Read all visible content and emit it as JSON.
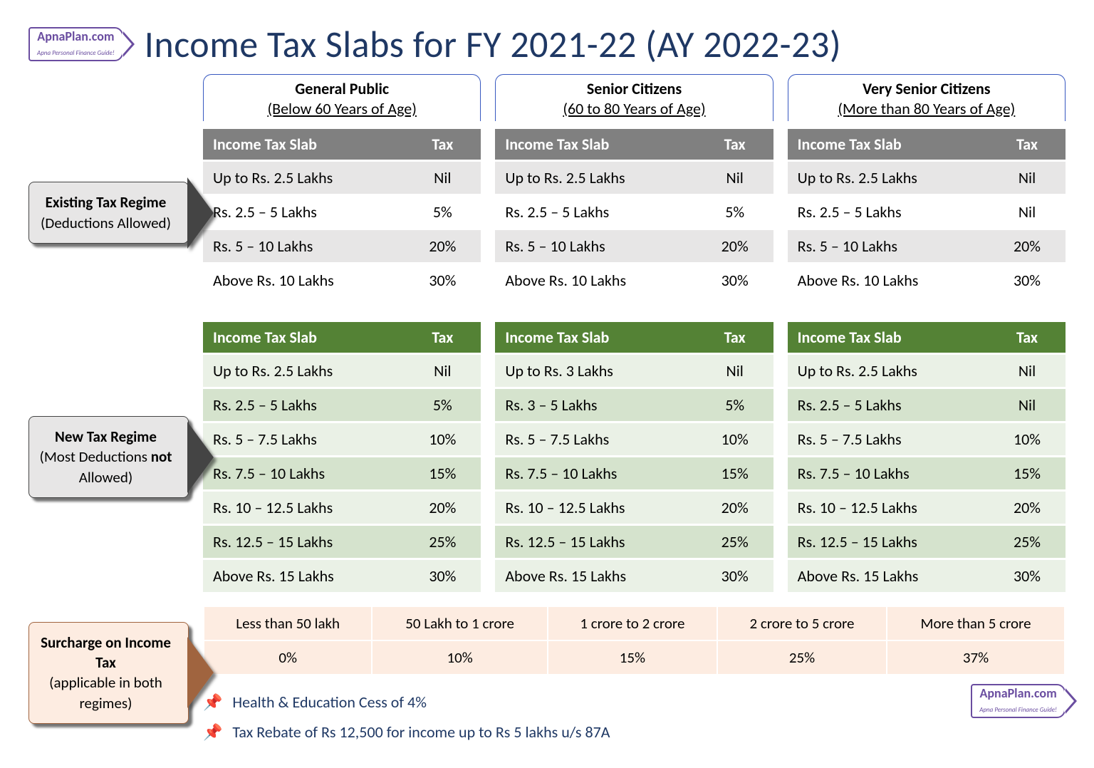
{
  "logo": {
    "brand": "ApnaPlan.com",
    "tag": "Apna Personal Finance Guide!"
  },
  "title": "Income Tax Slabs for FY 2021-22 (AY 2022-23)",
  "categories": [
    {
      "title": "General Public",
      "sub": "(Below 60 Years of Age)"
    },
    {
      "title": "Senior Citizens",
      "sub": "(60 to 80 Years of Age)"
    },
    {
      "title": "Very Senior Citizens",
      "sub": "(More than 80 Years of Age)"
    }
  ],
  "regimes": {
    "existing": {
      "strong": "Existing Tax Regime",
      "sub": "(Deductions Allowed)",
      "header_col1": "Income Tax Slab",
      "header_col2": "Tax"
    },
    "new": {
      "strong": "New Tax Regime",
      "sub_pre": "(Most Deductions ",
      "sub_mid": "not",
      "sub_post": " Allowed)",
      "header_col1": "Income Tax Slab",
      "header_col2": "Tax"
    },
    "surcharge": {
      "strong": "Surcharge on Income Tax",
      "sub": "(applicable in both regimes)"
    }
  },
  "existing_tables": [
    [
      [
        "Up to Rs. 2.5 Lakhs",
        "Nil"
      ],
      [
        "Rs. 2.5 – 5 Lakhs",
        "5%"
      ],
      [
        "Rs. 5 – 10 Lakhs",
        "20%"
      ],
      [
        "Above Rs. 10 Lakhs",
        "30%"
      ]
    ],
    [
      [
        "Up to Rs. 2.5 Lakhs",
        "Nil"
      ],
      [
        "Rs. 2.5 – 5 Lakhs",
        "5%"
      ],
      [
        "Rs. 5 – 10 Lakhs",
        "20%"
      ],
      [
        "Above Rs. 10 Lakhs",
        "30%"
      ]
    ],
    [
      [
        "Up to Rs. 2.5 Lakhs",
        "Nil"
      ],
      [
        "Rs. 2.5 – 5 Lakhs",
        "Nil"
      ],
      [
        "Rs. 5 – 10 Lakhs",
        "20%"
      ],
      [
        "Above Rs. 10 Lakhs",
        "30%"
      ]
    ]
  ],
  "new_tables": [
    [
      [
        "Up to Rs. 2.5 Lakhs",
        "Nil"
      ],
      [
        "Rs. 2.5 – 5 Lakhs",
        "5%"
      ],
      [
        "Rs. 5 – 7.5 Lakhs",
        "10%"
      ],
      [
        "Rs. 7.5 – 10 Lakhs",
        "15%"
      ],
      [
        "Rs. 10 – 12.5 Lakhs",
        "20%"
      ],
      [
        "Rs. 12.5 – 15 Lakhs",
        "25%"
      ],
      [
        "Above Rs. 15 Lakhs",
        "30%"
      ]
    ],
    [
      [
        "Up to Rs. 3 Lakhs",
        "Nil"
      ],
      [
        "Rs. 3 – 5 Lakhs",
        "5%"
      ],
      [
        "Rs. 5 – 7.5 Lakhs",
        "10%"
      ],
      [
        "Rs. 7.5 – 10 Lakhs",
        "15%"
      ],
      [
        "Rs. 10 – 12.5 Lakhs",
        "20%"
      ],
      [
        "Rs. 12.5 – 15 Lakhs",
        "25%"
      ],
      [
        "Above Rs. 15 Lakhs",
        "30%"
      ]
    ],
    [
      [
        "Up to Rs. 2.5 Lakhs",
        "Nil"
      ],
      [
        "Rs. 2.5 – 5 Lakhs",
        "Nil"
      ],
      [
        "Rs. 5 – 7.5 Lakhs",
        "10%"
      ],
      [
        "Rs. 7.5 – 10 Lakhs",
        "15%"
      ],
      [
        "Rs. 10 – 12.5 Lakhs",
        "20%"
      ],
      [
        "Rs. 12.5 – 15 Lakhs",
        "25%"
      ],
      [
        "Above Rs. 15 Lakhs",
        "30%"
      ]
    ]
  ],
  "surcharge": {
    "ranges": [
      "Less than 50 lakh",
      "50 Lakh to 1 crore",
      "1 crore to 2 crore",
      "2 crore to 5 crore",
      "More than 5 crore"
    ],
    "rates": [
      "0%",
      "10%",
      "15%",
      "25%",
      "37%"
    ]
  },
  "notes": [
    "Health & Education Cess of 4%",
    "Tax Rebate of Rs 12,500 for income up to Rs 5 lakhs u/s 87A"
  ],
  "colors": {
    "title": "#1f3864",
    "gray_header": "#808080",
    "green_header": "#548235",
    "surcharge_bg": "#fdece1"
  }
}
